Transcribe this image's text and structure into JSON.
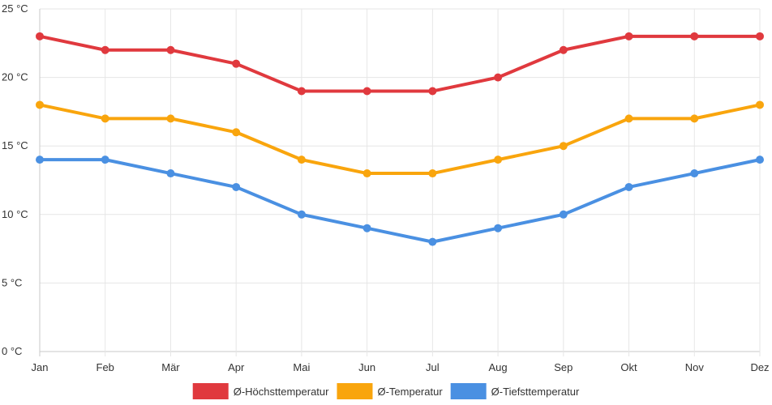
{
  "chart_data": {
    "type": "line",
    "title": "",
    "xlabel": "",
    "ylabel": "",
    "ylim": [
      0,
      25
    ],
    "yticks": [
      0,
      5,
      10,
      15,
      20,
      25
    ],
    "ytick_labels": [
      "0 °C",
      "5 °C",
      "10 °C",
      "15 °C",
      "20 °C",
      "25 °C"
    ],
    "categories": [
      "Jan",
      "Feb",
      "Mär",
      "Apr",
      "Mai",
      "Jun",
      "Jul",
      "Aug",
      "Sep",
      "Okt",
      "Nov",
      "Dez"
    ],
    "grid": true,
    "legend_position": "bottom",
    "series": [
      {
        "name": "Ø-Höchsttemperatur",
        "color": "#e0393e",
        "values": [
          23,
          22,
          22,
          21,
          19,
          19,
          19,
          20,
          22,
          23,
          23,
          23
        ]
      },
      {
        "name": "Ø-Temperatur",
        "color": "#f9a50d",
        "values": [
          18,
          17,
          17,
          16,
          14,
          13,
          13,
          14,
          15,
          17,
          17,
          18
        ]
      },
      {
        "name": "Ø-Tiefsttemperatur",
        "color": "#4a90e2",
        "values": [
          14,
          14,
          13,
          12,
          10,
          9,
          8,
          9,
          10,
          12,
          13,
          14
        ]
      }
    ]
  }
}
